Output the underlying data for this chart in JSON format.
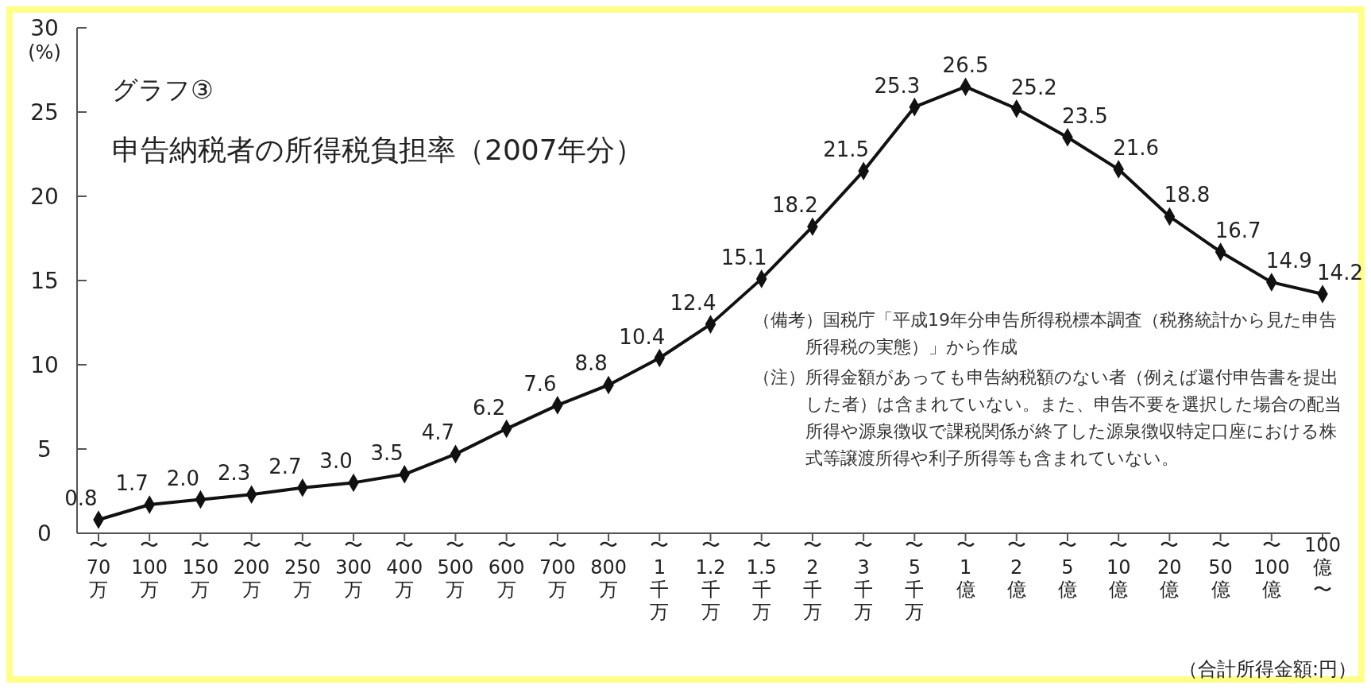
{
  "chart_data": {
    "type": "line",
    "title": "グラフ③",
    "subtitle": "申告納税者の所得税負担率（2007年分）",
    "ylabel": "(%)",
    "xlabel": "（合計所得金額:円）",
    "categories": [
      "〜70万",
      "〜100万",
      "〜150万",
      "〜200万",
      "〜250万",
      "〜300万",
      "〜400万",
      "〜500万",
      "〜600万",
      "〜700万",
      "〜800万",
      "〜1千万",
      "〜1.2千万",
      "〜1.5千万",
      "〜2千万",
      "〜3千万",
      "〜5千万",
      "〜1億",
      "〜2億",
      "〜5億",
      "〜10億",
      "〜20億",
      "〜50億",
      "〜100億",
      "100億〜"
    ],
    "series": [
      {
        "color": "#111111",
        "values": [
          0.8,
          1.7,
          2.0,
          2.3,
          2.7,
          3.0,
          3.5,
          4.7,
          6.2,
          7.6,
          8.8,
          10.4,
          12.4,
          15.1,
          18.2,
          21.5,
          25.3,
          26.5,
          25.2,
          23.5,
          21.6,
          18.8,
          16.7,
          14.9,
          14.2
        ],
        "value_labels": [
          "0.8",
          "1.7",
          "2.0",
          "2.3",
          "2.7",
          "3.0",
          "3.5",
          "4.7",
          "6.2",
          "7.6",
          "8.8",
          "10.4",
          "12.4",
          "15.1",
          "18.2",
          "21.5",
          "25.3",
          "26.5",
          "25.2",
          "23.5",
          "21.6",
          "18.8",
          "16.7",
          "14.9",
          "14.2"
        ]
      }
    ],
    "ylim": [
      0,
      30
    ],
    "yticks": [
      0,
      5,
      10,
      15,
      20,
      25,
      30
    ],
    "grid": false,
    "marker": "diamond",
    "line_style": "solid",
    "annotations": [
      "（備考）国税庁「平成19年分申告所得税標本調査（税務統計から見た申告所得税の実態）」から作成",
      "（注）所得金額があっても申告納税額のない者（例えば還付申告書を提出した者）は含まれていない。また、申告不要を選択した場合の配当所得や源泉徴収で課税関係が終了した源泉徴収特定口座における株式等譲渡所得や利子所得等も含まれていない。"
    ]
  }
}
